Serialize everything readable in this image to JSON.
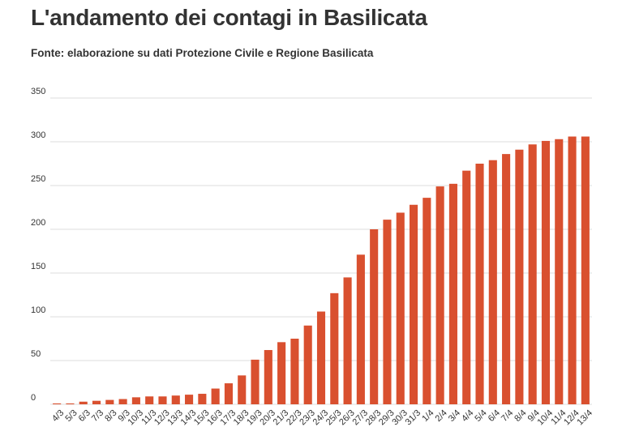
{
  "header": {
    "title": "L'andamento dei contagi in Basilicata",
    "subtitle": "Fonte: elaborazione su dati Protezione Civile e Regione Basilicata"
  },
  "chart_data": {
    "type": "bar",
    "title": "L'andamento dei contagi in Basilicata",
    "subtitle": "Fonte: elaborazione su dati Protezione Civile e Regione Basilicata",
    "xlabel": "",
    "ylabel": "",
    "ylim": [
      0,
      350
    ],
    "yticks": [
      0,
      50,
      100,
      150,
      200,
      250,
      300,
      350
    ],
    "grid": true,
    "legend": "none",
    "bar_color": "#d9502f",
    "categories": [
      "4/3",
      "5/3",
      "6/3",
      "7/3",
      "8/3",
      "9/3",
      "10/3",
      "11/3",
      "12/3",
      "13/3",
      "14/3",
      "15/3",
      "16/3",
      "17/3",
      "18/3",
      "19/3",
      "20/3",
      "21/3",
      "22/3",
      "23/3",
      "24/3",
      "25/3",
      "26/3",
      "27/3",
      "28/3",
      "29/3",
      "30/3",
      "31/3",
      "1/4",
      "2/4",
      "3/4",
      "4/4",
      "5/4",
      "6/4",
      "7/4",
      "8/4",
      "9/4",
      "10/4",
      "11/4",
      "12/4",
      "13/4"
    ],
    "values": [
      1,
      1,
      3,
      4,
      5,
      6,
      8,
      9,
      9,
      10,
      11,
      12,
      18,
      24,
      33,
      51,
      62,
      71,
      75,
      90,
      106,
      127,
      145,
      171,
      200,
      211,
      219,
      228,
      236,
      249,
      252,
      267,
      275,
      279,
      286,
      291,
      297,
      301,
      303,
      306,
      306
    ]
  }
}
